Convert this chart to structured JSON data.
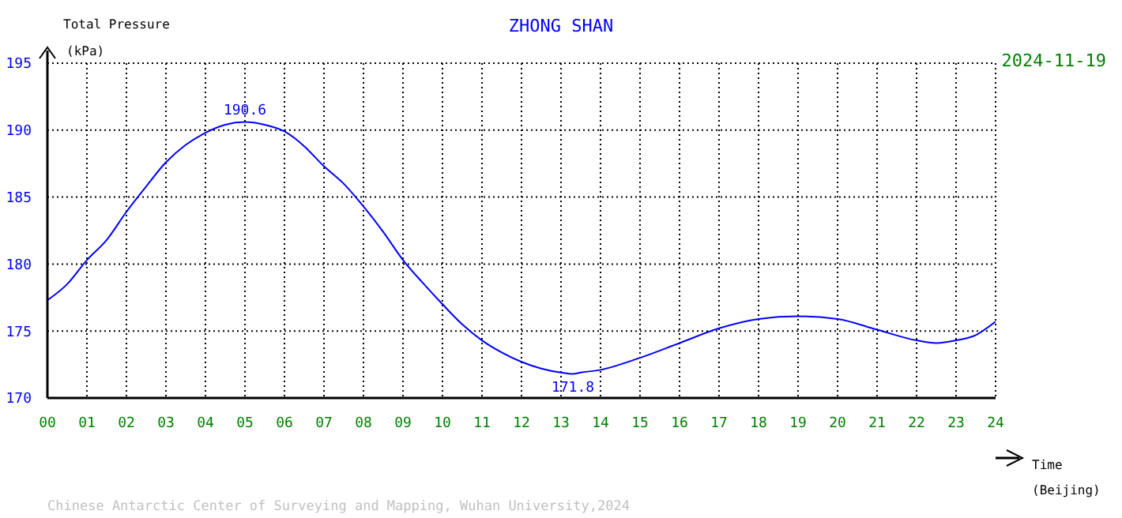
{
  "chart_data": {
    "type": "line",
    "title": "ZHONG SHAN",
    "subtitle": "2024-11-19",
    "ylabel": "Total Pressure\n(kPa)",
    "xlabel": "Time\n(Beijing)",
    "x": [
      0,
      0.5,
      1,
      1.5,
      2,
      2.5,
      3,
      3.5,
      4,
      4.5,
      5,
      5.5,
      6,
      6.5,
      7,
      7.5,
      8,
      8.5,
      9,
      9.5,
      10,
      10.5,
      11,
      11.5,
      12,
      12.5,
      13,
      13.3,
      13.5,
      14,
      15,
      16,
      17,
      18,
      19,
      20,
      21,
      22,
      22.5,
      23,
      23.5,
      24
    ],
    "series": [
      {
        "color": "#0000ff",
        "values": [
          177.3,
          178.5,
          180.3,
          181.8,
          183.9,
          185.8,
          187.6,
          188.9,
          189.8,
          190.4,
          190.6,
          190.4,
          189.9,
          188.8,
          187.3,
          186.0,
          184.3,
          182.4,
          180.3,
          178.6,
          177.0,
          175.5,
          174.3,
          173.4,
          172.7,
          172.2,
          171.9,
          171.8,
          171.9,
          172.1,
          173.0,
          174.1,
          175.2,
          175.9,
          176.1,
          175.9,
          175.1,
          174.3,
          174.1,
          174.3,
          174.7,
          175.7
        ]
      }
    ],
    "xlim": [
      0,
      24
    ],
    "ylim": [
      170,
      195
    ],
    "xticks": [
      {
        "value": 0,
        "label": "00"
      },
      {
        "value": 1,
        "label": "01"
      },
      {
        "value": 2,
        "label": "02"
      },
      {
        "value": 3,
        "label": "03"
      },
      {
        "value": 4,
        "label": "04"
      },
      {
        "value": 5,
        "label": "05"
      },
      {
        "value": 6,
        "label": "06"
      },
      {
        "value": 7,
        "label": "07"
      },
      {
        "value": 8,
        "label": "08"
      },
      {
        "value": 9,
        "label": "09"
      },
      {
        "value": 10,
        "label": "10"
      },
      {
        "value": 11,
        "label": "11"
      },
      {
        "value": 12,
        "label": "12"
      },
      {
        "value": 13,
        "label": "13"
      },
      {
        "value": 14,
        "label": "14"
      },
      {
        "value": 15,
        "label": "15"
      },
      {
        "value": 16,
        "label": "16"
      },
      {
        "value": 17,
        "label": "17"
      },
      {
        "value": 18,
        "label": "18"
      },
      {
        "value": 19,
        "label": "19"
      },
      {
        "value": 20,
        "label": "20"
      },
      {
        "value": 21,
        "label": "21"
      },
      {
        "value": 22,
        "label": "22"
      },
      {
        "value": 23,
        "label": "23"
      },
      {
        "value": 24,
        "label": "24"
      }
    ],
    "yticks": [
      170,
      175,
      180,
      185,
      190,
      195
    ],
    "grid": true,
    "line_style": "solid",
    "annotations": [
      {
        "text": "190.6",
        "x": 5,
        "y": 190.6
      },
      {
        "text": "171.8",
        "x": 13.3,
        "y": 171.8
      },
      "Chinese Antarctic Center of Surveying and Mapping, Wuhan University,2024"
    ]
  }
}
